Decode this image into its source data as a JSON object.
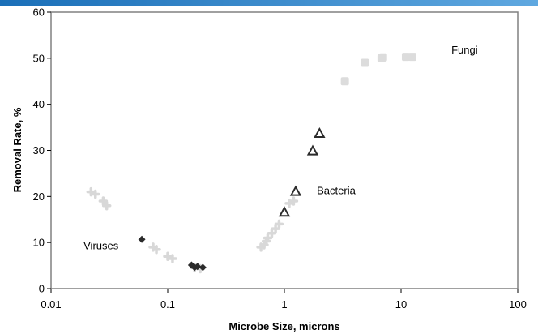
{
  "colors": {
    "header_bar_start": "#1a6fb8",
    "header_bar_end": "#5fa8e0",
    "plot_border": "#808080",
    "series_viruses_light": "#d8d8d8",
    "series_viruses_dark": "#2b2b2b",
    "series_bacteria_light": "#e6e6e6",
    "series_bacteria_dark": "#2b2b2b",
    "series_fungi": "#dcdcdc"
  },
  "chart_data": {
    "type": "scatter",
    "xlabel": "Microbe Size, microns",
    "ylabel": "Removal Rate, %",
    "x_scale": "log",
    "xlim": [
      0.01,
      100
    ],
    "ylim": [
      0,
      60
    ],
    "x_ticks": [
      "0.01",
      "0.1",
      "1",
      "10",
      "100"
    ],
    "x_tick_values": [
      0.01,
      0.1,
      1,
      10,
      100
    ],
    "y_ticks": [
      "0",
      "10",
      "20",
      "30",
      "40",
      "50",
      "60"
    ],
    "y_tick_values": [
      0,
      10,
      20,
      30,
      40,
      50,
      60
    ],
    "grid": false,
    "annotations": [
      {
        "text": "Viruses",
        "x": 0.019,
        "y": 8.5
      },
      {
        "text": "Bacteria",
        "x": 1.9,
        "y": 20.5
      },
      {
        "text": "Fungi",
        "x": 27,
        "y": 51
      }
    ],
    "series": [
      {
        "marker": "plus-light",
        "points": [
          [
            0.022,
            21
          ],
          [
            0.024,
            20.5
          ],
          [
            0.028,
            19
          ],
          [
            0.03,
            18
          ],
          [
            0.075,
            9
          ],
          [
            0.08,
            8.5
          ],
          [
            0.1,
            7
          ],
          [
            0.11,
            6.5
          ],
          [
            0.17,
            4.5
          ],
          [
            0.19,
            4.3
          ]
        ]
      },
      {
        "marker": "diamond-dark",
        "points": [
          [
            0.06,
            10.7
          ],
          [
            0.16,
            5.1
          ],
          [
            0.17,
            4.6
          ],
          [
            0.18,
            4.8
          ],
          [
            0.2,
            4.6
          ]
        ]
      },
      {
        "marker": "plus-light",
        "points": [
          [
            0.63,
            9
          ],
          [
            0.67,
            9.5
          ],
          [
            0.7,
            10.3
          ],
          [
            0.72,
            11
          ],
          [
            0.78,
            12
          ],
          [
            0.84,
            13
          ],
          [
            0.9,
            14
          ],
          [
            1.1,
            18.5
          ],
          [
            1.2,
            19
          ]
        ]
      },
      {
        "marker": "triangle-dark",
        "points": [
          [
            1.0,
            16.5
          ],
          [
            1.25,
            21
          ],
          [
            1.75,
            29.8
          ],
          [
            2.0,
            33.6
          ]
        ]
      },
      {
        "marker": "square-light",
        "points": [
          [
            3.3,
            45
          ],
          [
            4.9,
            49
          ],
          [
            6.8,
            50
          ],
          [
            7.0,
            50.2
          ],
          [
            11,
            50.3
          ],
          [
            12.5,
            50.3
          ]
        ]
      }
    ]
  }
}
